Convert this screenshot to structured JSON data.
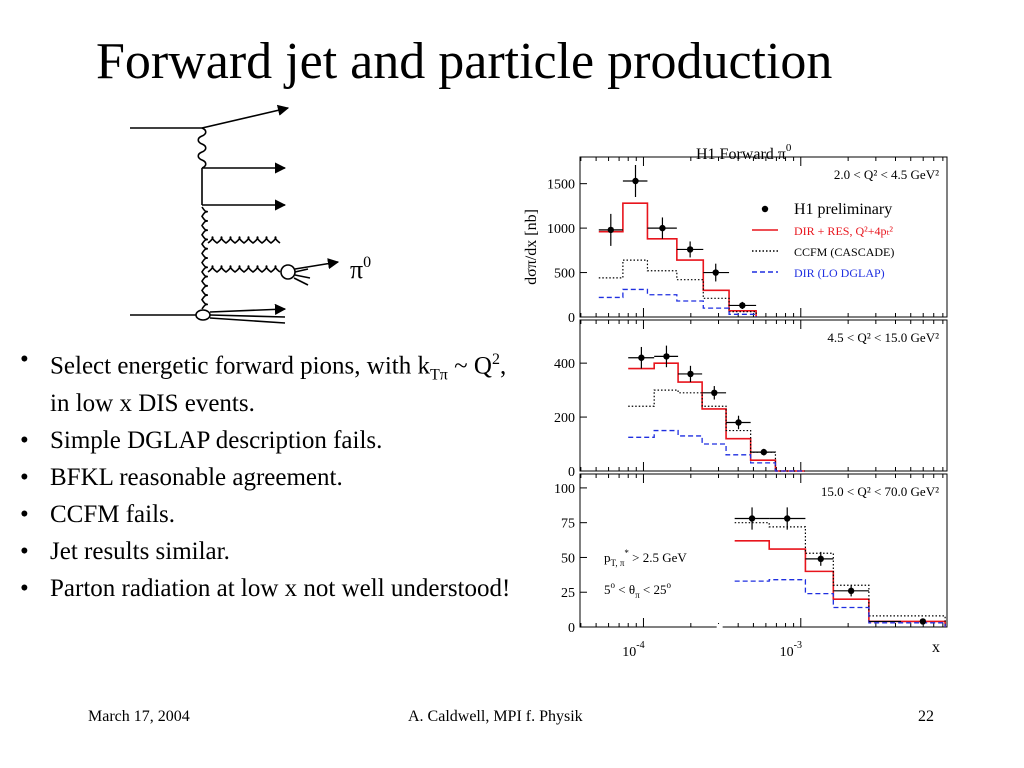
{
  "slide": {
    "title": "Forward jet and particle production",
    "bullets": [
      {
        "parts": [
          "Select energetic forward pions, with k",
          "Tπ",
          " ~ Q",
          "2",
          ", in low x DIS events."
        ]
      },
      {
        "text": "Simple DGLAP description fails."
      },
      {
        "text": "BFKL reasonable agreement."
      },
      {
        "text": "CCFM fails."
      },
      {
        "text": "Jet results similar."
      },
      {
        "text": "Parton radiation at low x not well understood!"
      }
    ],
    "footer": {
      "date": "March 17, 2004",
      "author": "A. Caldwell, MPI f. Physik",
      "page": "22"
    }
  },
  "diagram": {
    "label_main": "π",
    "label_sup": "0"
  },
  "chart_data": {
    "type": "line",
    "title": "H1 Forward π",
    "title_sup": "0",
    "ylabel": "dσπ/dx [nb]",
    "xlabel": "x",
    "x_scale": "log",
    "x_ticks": [
      "10",
      "-4",
      "10",
      "-3"
    ],
    "legend": {
      "placement": "top-right",
      "entries": [
        {
          "name": "H1 preliminary",
          "style": "marker",
          "color": "#000000"
        },
        {
          "name": "DIR + RES, Q²+4pₜ²",
          "style": "solid",
          "color": "#e8141c"
        },
        {
          "name": "CCFM (CASCADE)",
          "style": "dotted",
          "color": "#000000"
        },
        {
          "name": "DIR (LO DGLAP)",
          "style": "dashed",
          "color": "#1f2fe0"
        }
      ]
    },
    "panels": [
      {
        "label": "2.0 < Q² < 4.5 GeV²",
        "ylim": [
          0,
          1800
        ],
        "yticks": [
          0,
          500,
          1000,
          1500
        ],
        "bin_edges": [
          5.2e-05,
          7.4e-05,
          0.000106,
          0.000163,
          0.00024,
          0.00035,
          0.00052
        ],
        "data": [
          {
            "x": 6.2e-05,
            "y": 980,
            "err": 180
          },
          {
            "x": 8.9e-05,
            "y": 1530,
            "err": 180
          },
          {
            "x": 0.000132,
            "y": 1000,
            "err": 120
          },
          {
            "x": 0.000198,
            "y": 760,
            "err": 90
          },
          {
            "x": 0.000288,
            "y": 500,
            "err": 100
          },
          {
            "x": 0.000425,
            "y": 130,
            "err": 40
          }
        ],
        "series": [
          {
            "name": "DIR + RES, Q²+4pₜ²",
            "values": [
              960,
              1280,
              880,
              640,
              300,
              70
            ]
          },
          {
            "name": "CCFM (CASCADE)",
            "values": [
              440,
              640,
              520,
              420,
              210,
              60
            ]
          },
          {
            "name": "DIR (LO DGLAP)",
            "values": [
              220,
              310,
              250,
              180,
              100,
              30
            ]
          }
        ]
      },
      {
        "label": "4.5 < Q² < 15.0 GeV²",
        "ylim": [
          0,
          560
        ],
        "yticks": [
          0,
          200,
          400
        ],
        "bin_edges": [
          8e-05,
          0.000117,
          0.000166,
          0.000236,
          0.000335,
          0.00048,
          0.00069,
          0.00106
        ],
        "data": [
          {
            "x": 9.7e-05,
            "y": 420,
            "err": 40
          },
          {
            "x": 0.00014,
            "y": 425,
            "err": 40
          },
          {
            "x": 0.000199,
            "y": 360,
            "err": 30
          },
          {
            "x": 0.000282,
            "y": 290,
            "err": 25
          },
          {
            "x": 0.000402,
            "y": 180,
            "err": 25
          },
          {
            "x": 0.000582,
            "y": 70,
            "err": 12
          }
        ],
        "series": [
          {
            "name": "DIR + RES, Q²+4pₜ²",
            "values": [
              380,
              400,
              330,
              230,
              120,
              40,
              0
            ]
          },
          {
            "name": "CCFM (CASCADE)",
            "values": [
              240,
              300,
              290,
              240,
              150,
              70,
              0
            ]
          },
          {
            "name": "DIR (LO DGLAP)",
            "values": [
              125,
              150,
              130,
              100,
              60,
              30,
              0
            ]
          }
        ]
      },
      {
        "label": "15.0 < Q² < 70.0 GeV²",
        "notes": [
          {
            "main": "p",
            "sub": "T, π",
            "sup": "*",
            "rest": " > 2.5 GeV"
          },
          {
            "main": "5",
            "sup": "o",
            "rest": " < θ",
            "sub2": "π",
            "rest2": " < 25",
            "sup2": "o"
          }
        ],
        "ylim": [
          0,
          110
        ],
        "yticks": [
          0,
          25,
          50,
          75,
          100
        ],
        "bin_edges": [
          0.00038,
          0.00063,
          0.00107,
          0.00161,
          0.00271,
          0.00434,
          0.00827
        ],
        "data": [
          {
            "x": 0.00049,
            "y": 78,
            "err": 8
          },
          {
            "x": 0.00082,
            "y": 78,
            "err": 8
          },
          {
            "x": 0.00134,
            "y": 49,
            "err": 5
          },
          {
            "x": 0.00209,
            "y": 26,
            "err": 4
          },
          {
            "x": 0.00597,
            "y": 4,
            "err": 1
          }
        ],
        "series": [
          {
            "name": "DIR + RES, Q²+4pₜ²",
            "values": [
              62,
              56,
              40,
              20,
              4,
              4
            ]
          },
          {
            "name": "CCFM (CASCADE)",
            "values": [
              75,
              72,
              53,
              30,
              8,
              8
            ]
          },
          {
            "name": "DIR (LO DGLAP)",
            "values": [
              33,
              34,
              24,
              14,
              3,
              3
            ]
          }
        ]
      }
    ]
  }
}
